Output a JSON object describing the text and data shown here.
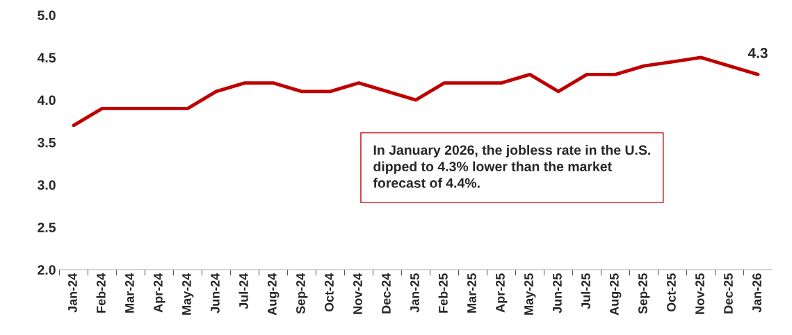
{
  "chart_data": {
    "type": "line",
    "categories": [
      "Jan-24",
      "Feb-24",
      "Mar-24",
      "Apr-24",
      "May-24",
      "Jun-24",
      "Jul-24",
      "Aug-24",
      "Sep-24",
      "Oct-24",
      "Nov-24",
      "Dec-24",
      "Jan-25",
      "Feb-25",
      "Mar-25",
      "Apr-25",
      "May-25",
      "Jun-25",
      "Jul-25",
      "Aug-25",
      "Sep-25",
      "Oct-25",
      "Nov-25",
      "Dec-25",
      "Jan-26"
    ],
    "series": [
      {
        "color": "#c00000",
        "values": [
          3.7,
          3.9,
          3.9,
          3.9,
          3.9,
          4.1,
          4.2,
          4.2,
          4.1,
          4.1,
          4.2,
          4.1,
          4.0,
          4.2,
          4.2,
          4.2,
          4.3,
          4.1,
          4.3,
          4.3,
          4.4,
          4.45,
          4.5,
          4.4,
          4.3
        ],
        "value_labels": [
          null,
          null,
          null,
          null,
          null,
          null,
          null,
          null,
          null,
          null,
          null,
          null,
          null,
          null,
          null,
          null,
          null,
          null,
          null,
          null,
          null,
          null,
          null,
          null,
          "4.3"
        ]
      }
    ],
    "ylim": [
      2.0,
      5.0
    ],
    "yticks": [
      {
        "value": 2.0,
        "label": "2.0"
      },
      {
        "value": 2.5,
        "label": "2.5"
      },
      {
        "value": 3.0,
        "label": "3.0"
      },
      {
        "value": 3.5,
        "label": "3.5"
      },
      {
        "value": 4.0,
        "label": "4.0"
      },
      {
        "value": 4.5,
        "label": "4.5"
      },
      {
        "value": 5.0,
        "label": "5.0"
      }
    ],
    "grid": false,
    "legend": false,
    "marker": "none",
    "line_style": "solid",
    "annotations": [
      "In January 2026, the jobless rate in the U.S.\ndipped to 4.3% lower than the market\nforecast of 4.4%."
    ]
  }
}
